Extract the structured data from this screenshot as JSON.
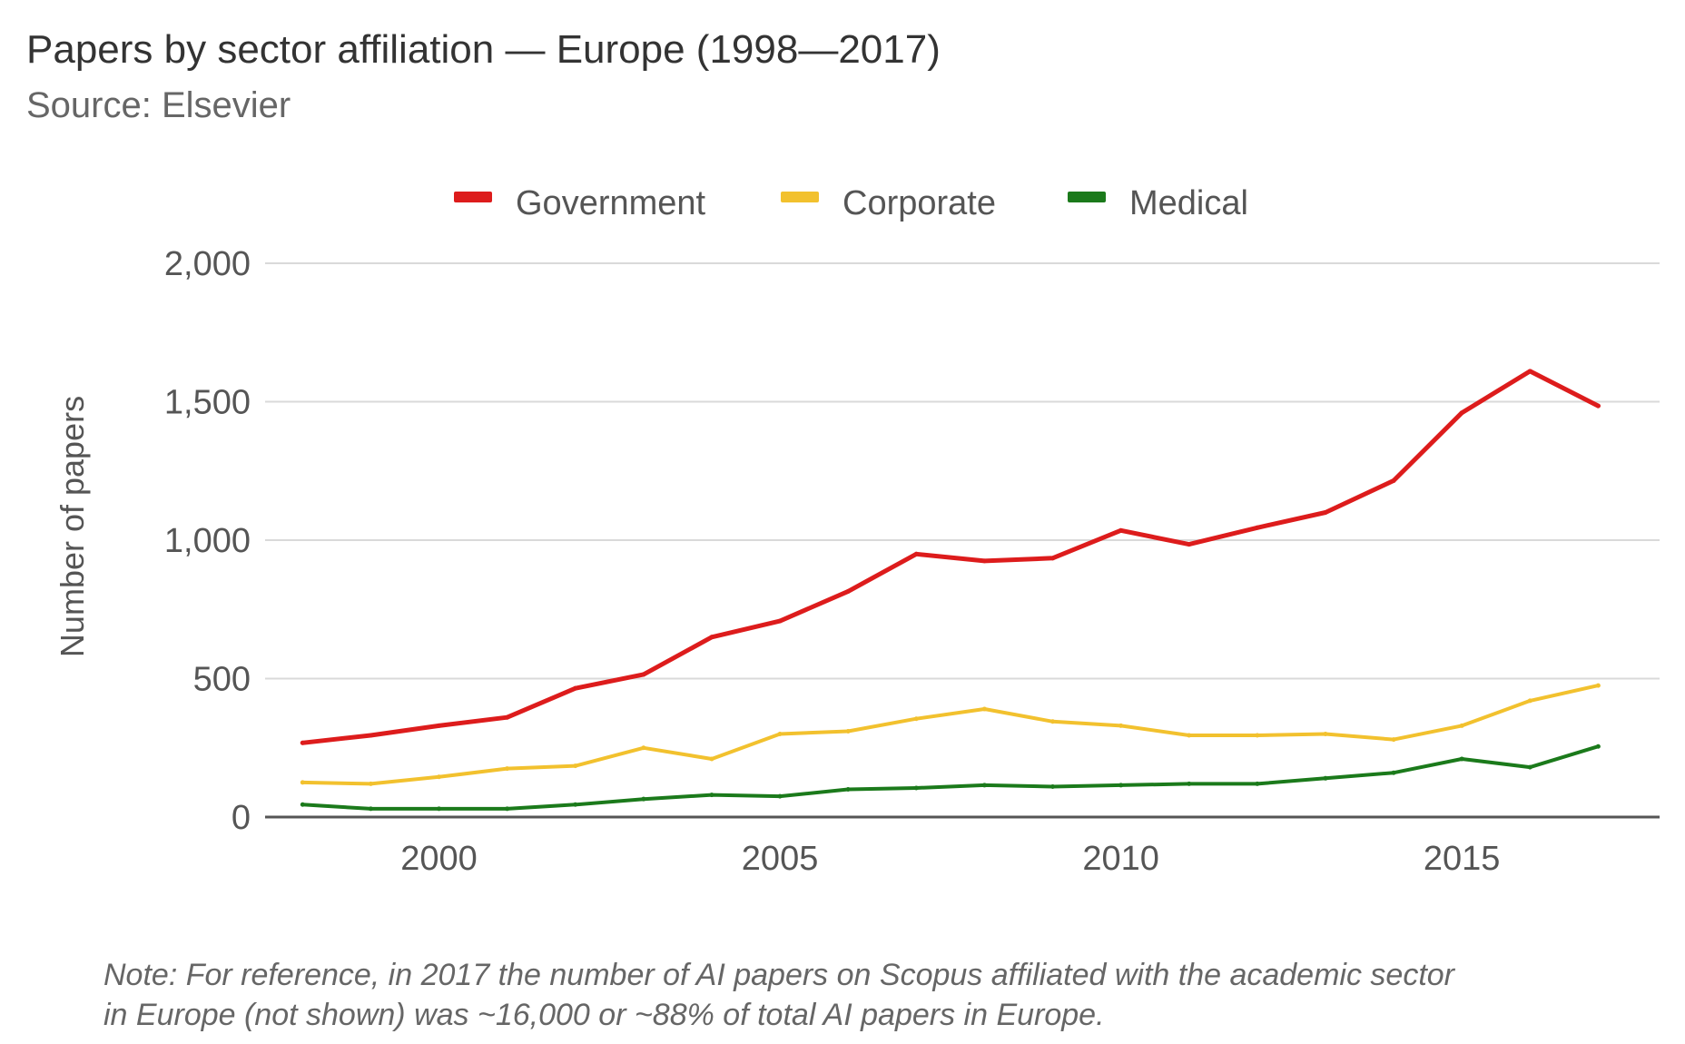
{
  "title": "Papers by sector affiliation — Europe (1998—2017)",
  "subtitle": "Source: Elsevier",
  "note_lines": [
    "Note: For reference, in 2017 the number of AI papers on Scopus affiliated with the academic sector",
    "in Europe (not shown) was ~16,000 or ~88% of total AI papers in Europe."
  ],
  "colors": {
    "government": "#dd1c1c",
    "corporate": "#f2c12e",
    "medical": "#1b7a1b",
    "grid": "#d9d9d9",
    "axis": "#555555",
    "text": "#555555"
  },
  "chart_data": {
    "type": "line",
    "title": "Papers by sector affiliation — Europe (1998—2017)",
    "subtitle": "Source: Elsevier",
    "ylabel": "Number of papers",
    "xlabel": "",
    "x": [
      1998,
      1999,
      2000,
      2001,
      2002,
      2003,
      2004,
      2005,
      2006,
      2007,
      2008,
      2009,
      2010,
      2011,
      2012,
      2013,
      2014,
      2015,
      2016,
      2017
    ],
    "xlim": [
      1997.45,
      2017.9
    ],
    "ylim": [
      0,
      2000
    ],
    "xticks": [
      2000,
      2005,
      2010,
      2015
    ],
    "xtick_labels": [
      "2000",
      "2005",
      "2010",
      "2015"
    ],
    "yticks": [
      0,
      500,
      1000,
      1500,
      2000
    ],
    "ytick_labels": [
      "0",
      "500",
      "1,000",
      "1,500",
      "2,000"
    ],
    "grid": true,
    "legend_position": "top-center",
    "series": [
      {
        "name": "Government",
        "color": "#dd1c1c",
        "values": [
          268,
          295,
          330,
          360,
          465,
          515,
          650,
          708,
          815,
          950,
          925,
          935,
          1035,
          985,
          1045,
          1100,
          1215,
          1460,
          1610,
          1485
        ]
      },
      {
        "name": "Corporate",
        "color": "#f2c12e",
        "values": [
          125,
          120,
          145,
          175,
          185,
          250,
          210,
          300,
          310,
          355,
          390,
          345,
          330,
          295,
          295,
          300,
          280,
          330,
          420,
          475
        ]
      },
      {
        "name": "Medical",
        "color": "#1b7a1b",
        "values": [
          45,
          30,
          30,
          30,
          45,
          65,
          80,
          75,
          100,
          105,
          115,
          110,
          115,
          120,
          120,
          140,
          160,
          210,
          180,
          255
        ]
      }
    ]
  }
}
